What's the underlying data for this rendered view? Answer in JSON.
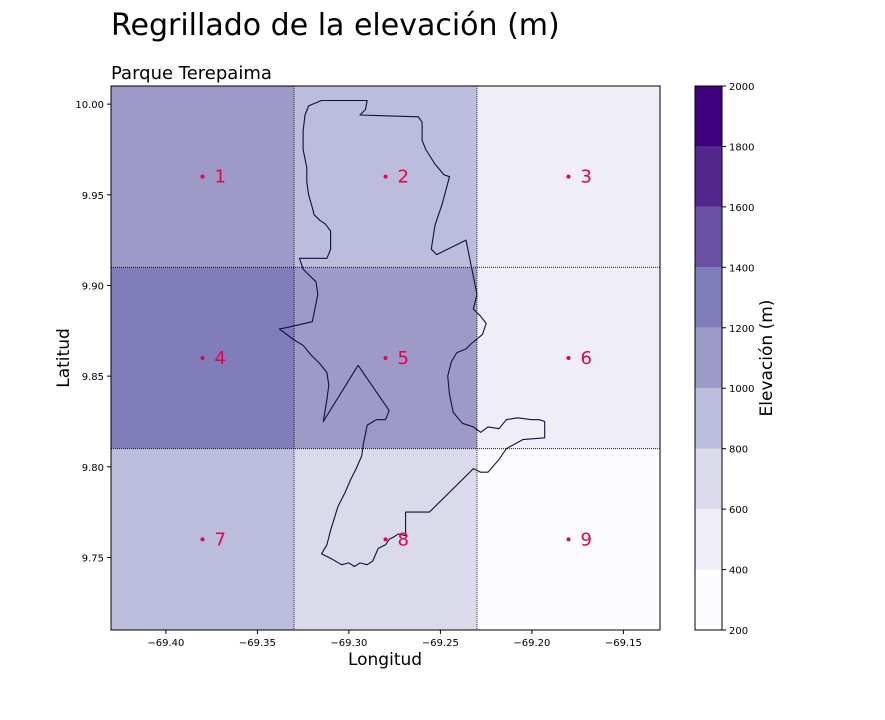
{
  "chart_data": {
    "type": "heatmap",
    "title": "Regrillado de la elevación (m)",
    "subtitle": "Parque Terepaima",
    "xlabel": "Longitud",
    "ylabel": "Latitud",
    "xlim": [
      -69.43,
      -69.13
    ],
    "ylim": [
      9.71,
      10.01
    ],
    "x_ticks": [
      -69.4,
      -69.35,
      -69.3,
      -69.25,
      -69.2,
      -69.15
    ],
    "x_tick_labels": [
      "−69.40",
      "−69.35",
      "−69.30",
      "−69.25",
      "−69.20",
      "−69.15"
    ],
    "y_ticks": [
      9.75,
      9.8,
      9.85,
      9.9,
      9.95,
      10.0
    ],
    "y_tick_labels": [
      "9.75",
      "9.80",
      "9.85",
      "9.90",
      "9.95",
      "10.00"
    ],
    "grid_x_edges": [
      -69.43,
      -69.33,
      -69.23,
      -69.13
    ],
    "grid_y_edges": [
      9.71,
      9.81,
      9.91,
      10.01
    ],
    "cells": [
      {
        "label": "1",
        "x": -69.38,
        "y": 9.96,
        "elevation": 1100
      },
      {
        "label": "2",
        "x": -69.28,
        "y": 9.96,
        "elevation": 900
      },
      {
        "label": "3",
        "x": -69.18,
        "y": 9.96,
        "elevation": 500
      },
      {
        "label": "4",
        "x": -69.38,
        "y": 9.86,
        "elevation": 1300
      },
      {
        "label": "5",
        "x": -69.28,
        "y": 9.86,
        "elevation": 1100
      },
      {
        "label": "6",
        "x": -69.18,
        "y": 9.86,
        "elevation": 500
      },
      {
        "label": "7",
        "x": -69.38,
        "y": 9.76,
        "elevation": 900
      },
      {
        "label": "8",
        "x": -69.28,
        "y": 9.76,
        "elevation": 700
      },
      {
        "label": "9",
        "x": -69.18,
        "y": 9.76,
        "elevation": 300
      }
    ],
    "colorbar": {
      "label": "Elevación (m)",
      "bounds": [
        200,
        400,
        600,
        800,
        1000,
        1200,
        1400,
        1600,
        1800,
        2000
      ],
      "colors": [
        "#fcfbfd",
        "#efedf5",
        "#dadaeb",
        "#bcbddc",
        "#9e9ac8",
        "#807dba",
        "#6a51a3",
        "#54278f",
        "#3f007d"
      ]
    },
    "boundary": [
      [
        -69.302,
        10.002
      ],
      [
        -69.29,
        10.002
      ],
      [
        -69.291,
        9.997
      ],
      [
        -69.294,
        9.994
      ],
      [
        -69.262,
        9.993
      ],
      [
        -69.26,
        9.99
      ],
      [
        -69.26,
        9.98
      ],
      [
        -69.258,
        9.975
      ],
      [
        -69.253,
        9.967
      ],
      [
        -69.248,
        9.961
      ],
      [
        -69.245,
        9.96
      ],
      [
        -69.249,
        9.945
      ],
      [
        -69.253,
        9.933
      ],
      [
        -69.255,
        9.92
      ],
      [
        -69.252,
        9.917
      ],
      [
        -69.236,
        9.925
      ],
      [
        -69.233,
        9.91
      ],
      [
        -69.23,
        9.895
      ],
      [
        -69.232,
        9.887
      ],
      [
        -69.228,
        9.883
      ],
      [
        -69.225,
        9.879
      ],
      [
        -69.227,
        9.873
      ],
      [
        -69.233,
        9.868
      ],
      [
        -69.236,
        9.865
      ],
      [
        -69.241,
        9.863
      ],
      [
        -69.244,
        9.858
      ],
      [
        -69.246,
        9.85
      ],
      [
        -69.245,
        9.84
      ],
      [
        -69.243,
        9.83
      ],
      [
        -69.238,
        9.824
      ],
      [
        -69.232,
        9.822
      ],
      [
        -69.228,
        9.819
      ],
      [
        -69.224,
        9.822
      ],
      [
        -69.218,
        9.821
      ],
      [
        -69.214,
        9.826
      ],
      [
        -69.208,
        9.827
      ],
      [
        -69.2,
        9.826
      ],
      [
        -69.196,
        9.826
      ],
      [
        -69.193,
        9.825
      ],
      [
        -69.193,
        9.816
      ],
      [
        -69.205,
        9.815
      ],
      [
        -69.214,
        9.81
      ],
      [
        -69.218,
        9.804
      ],
      [
        -69.224,
        9.797
      ],
      [
        -69.228,
        9.797
      ],
      [
        -69.232,
        9.799
      ],
      [
        -69.235,
        9.796
      ],
      [
        -69.256,
        9.775
      ],
      [
        -69.269,
        9.775
      ],
      [
        -69.269,
        9.762
      ],
      [
        -69.273,
        9.763
      ],
      [
        -69.276,
        9.761
      ],
      [
        -69.278,
        9.76
      ],
      [
        -69.28,
        9.757
      ],
      [
        -69.284,
        9.755
      ],
      [
        -69.287,
        9.748
      ],
      [
        -69.29,
        9.746
      ],
      [
        -69.294,
        9.747
      ],
      [
        -69.297,
        9.745
      ],
      [
        -69.3,
        9.747
      ],
      [
        -69.304,
        9.746
      ],
      [
        -69.309,
        9.749
      ],
      [
        -69.315,
        9.752
      ],
      [
        -69.312,
        9.757
      ],
      [
        -69.31,
        9.765
      ],
      [
        -69.306,
        9.778
      ],
      [
        -69.302,
        9.786
      ],
      [
        -69.299,
        9.793
      ],
      [
        -69.296,
        9.799
      ],
      [
        -69.293,
        9.806
      ],
      [
        -69.292,
        9.813
      ],
      [
        -69.291,
        9.818
      ],
      [
        -69.29,
        9.823
      ],
      [
        -69.285,
        9.826
      ],
      [
        -69.28,
        9.826
      ],
      [
        -69.278,
        9.831
      ],
      [
        -69.295,
        9.856
      ],
      [
        -69.314,
        9.825
      ],
      [
        -69.313,
        9.831
      ],
      [
        -69.312,
        9.837
      ],
      [
        -69.311,
        9.845
      ],
      [
        -69.312,
        9.852
      ],
      [
        -69.316,
        9.857
      ],
      [
        -69.321,
        9.862
      ],
      [
        -69.325,
        9.867
      ],
      [
        -69.33,
        9.87
      ],
      [
        -69.338,
        9.876
      ],
      [
        -69.333,
        9.877
      ],
      [
        -69.32,
        9.88
      ],
      [
        -69.317,
        9.895
      ],
      [
        -69.318,
        9.902
      ],
      [
        -69.322,
        9.906
      ],
      [
        -69.325,
        9.909
      ],
      [
        -69.327,
        9.915
      ],
      [
        -69.32,
        9.915
      ],
      [
        -69.312,
        9.915
      ],
      [
        -69.31,
        9.92
      ],
      [
        -69.31,
        9.93
      ],
      [
        -69.313,
        9.934
      ],
      [
        -69.316,
        9.936
      ],
      [
        -69.319,
        9.939
      ],
      [
        -69.32,
        9.943
      ],
      [
        -69.322,
        9.95
      ],
      [
        -69.323,
        9.957
      ],
      [
        -69.323,
        9.965
      ],
      [
        -69.325,
        9.975
      ],
      [
        -69.325,
        9.985
      ],
      [
        -69.324,
        9.994
      ],
      [
        -69.322,
        9.999
      ],
      [
        -69.315,
        10.002
      ],
      [
        -69.302,
        10.002
      ]
    ]
  }
}
